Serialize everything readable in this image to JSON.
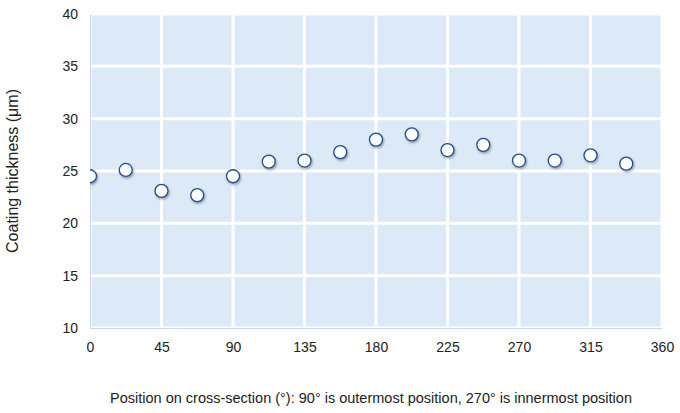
{
  "chart_data": {
    "type": "scatter",
    "x_label": "Position on cross-section (°): 90° is outermost position, 270° is innermost position",
    "y_label": "Coating thickness (μm)",
    "x": [
      0,
      22.5,
      45,
      67.5,
      90,
      112.5,
      135,
      157.5,
      180,
      202.5,
      225,
      247.5,
      270,
      292.5,
      315,
      337.5
    ],
    "values": [
      24.5,
      25.1,
      23.1,
      22.7,
      24.5,
      25.9,
      26.0,
      26.8,
      28.0,
      28.5,
      27.0,
      27.5,
      26.0,
      26.0,
      26.5,
      25.7
    ],
    "color": "#1f4e8c",
    "marker": "circle",
    "xlim": [
      0,
      360
    ],
    "xticks": [
      0,
      45,
      90,
      135,
      180,
      225,
      270,
      315,
      360
    ],
    "ylim": [
      10,
      40
    ],
    "yticks": [
      10,
      15,
      20,
      25,
      30,
      35,
      40
    ],
    "grid": true
  }
}
